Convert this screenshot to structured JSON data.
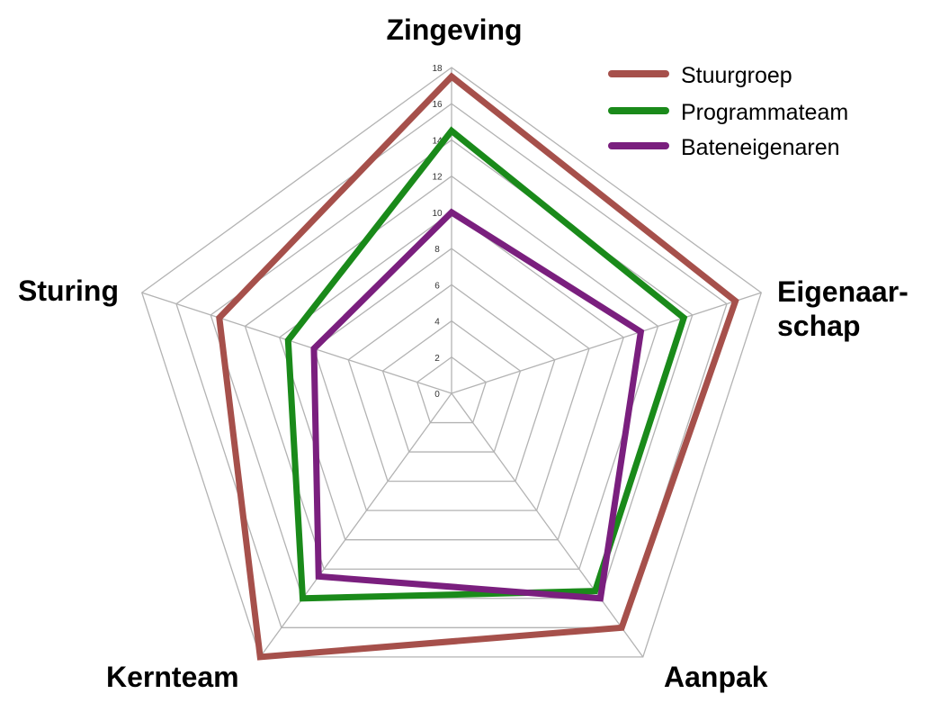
{
  "chart_data": {
    "type": "radar",
    "categories": [
      "Zingeving",
      "Eigenaar-\nschap",
      "Aanpak",
      "Kernteam",
      "Sturing"
    ],
    "rlim": [
      0,
      18
    ],
    "ticks": [
      "0",
      "2",
      "4",
      "6",
      "8",
      "10",
      "12",
      "14",
      "16",
      "18"
    ],
    "grid": true,
    "legend_position": "top-right",
    "series": [
      {
        "name": "Stuurgroep",
        "color": "#a6504b",
        "values": [
          17.5,
          16.5,
          16.0,
          18.0,
          13.5
        ]
      },
      {
        "name": "Programmateam",
        "color": "#1a8a1a",
        "values": [
          14.5,
          13.5,
          13.5,
          14.0,
          9.5
        ]
      },
      {
        "name": "Bateneigenaren",
        "color": "#7a1f7e",
        "values": [
          10.0,
          11.0,
          14.0,
          12.5,
          8.0
        ]
      }
    ]
  }
}
